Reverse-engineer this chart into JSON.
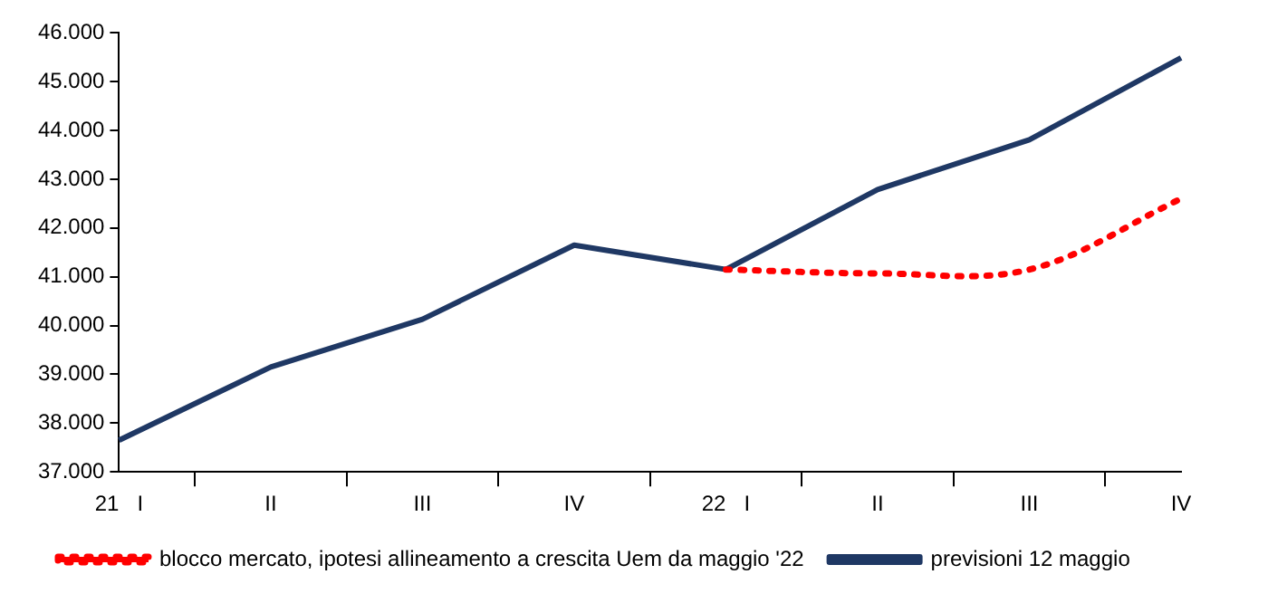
{
  "chart_data": {
    "type": "line",
    "categories": [
      "21   I",
      "II",
      "III",
      "IV",
      "22   I",
      "II",
      "III",
      "IV"
    ],
    "series": [
      {
        "name": "blocco mercato, ipotesi allineamento a crescita Uem da maggio '22",
        "color": "#ff0000",
        "line_style": "dotted",
        "values": [
          null,
          null,
          null,
          null,
          41150,
          41070,
          41150,
          42600
        ]
      },
      {
        "name": "previsioni 12 maggio",
        "color": "#1f3864",
        "line_style": "solid",
        "values": [
          37650,
          39150,
          40130,
          41650,
          41150,
          42790,
          43810,
          45490
        ]
      }
    ],
    "ylim": [
      37000,
      46000
    ],
    "yticks": [
      {
        "value": 37000,
        "label": "37.000"
      },
      {
        "value": 38000,
        "label": "38.000"
      },
      {
        "value": 39000,
        "label": "39.000"
      },
      {
        "value": 40000,
        "label": "40.000"
      },
      {
        "value": 41000,
        "label": "41.000"
      },
      {
        "value": 42000,
        "label": "42.000"
      },
      {
        "value": 43000,
        "label": "43.000"
      },
      {
        "value": 44000,
        "label": "44.000"
      },
      {
        "value": 45000,
        "label": "45.000"
      },
      {
        "value": 46000,
        "label": "46.000"
      }
    ],
    "grid": false,
    "legend": "bottom",
    "marker": "none"
  }
}
